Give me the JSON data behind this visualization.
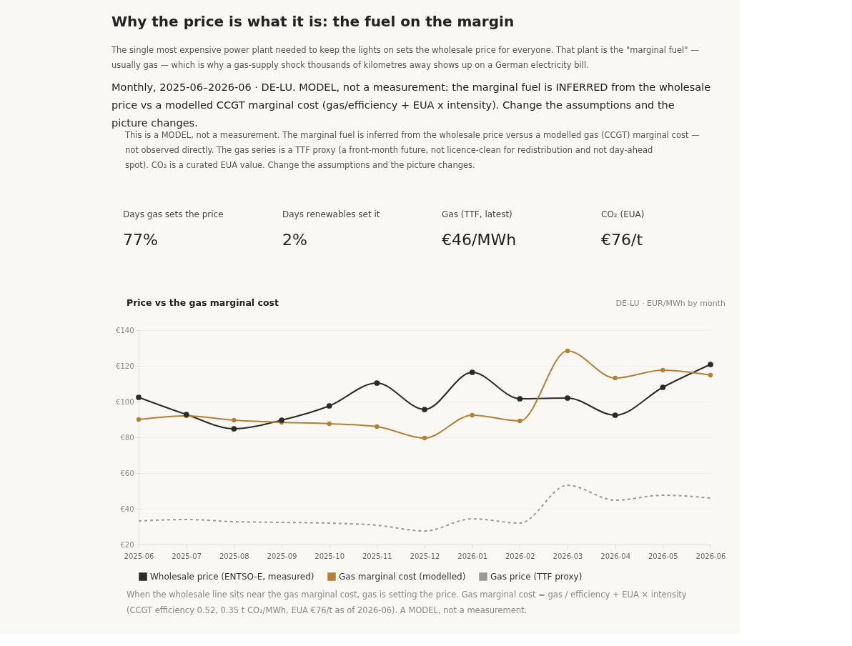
{
  "chart_data": {
    "type": "line",
    "title": "Why the price is what it is: the fuel on the margin",
    "subtitle": "The single most expensive power plant needed to keep the lights on sets the wholesale price for everyone. That plant is the \"marginal fuel\" — usually gas — which is why a gas-supply shock thousands of kilometres away shows up on a German electricity bill.",
    "annotations": [
      "Monthly, 2025-06–2026-06 · DE-LU. MODEL, not a measurement: the marginal fuel is INFERRED from the wholesale price vs a modelled CCGT marginal cost (gas/efficiency + EUA x intensity). Change the assumptions and the picture changes.",
      "This is a MODEL, not a measurement. The marginal fuel is inferred from the wholesale price versus a modelled gas (CCGT) marginal cost — not observed directly. The gas series is a TTF proxy (a front-month future, not licence-clean for redistribution and not day-ahead spot). CO₂ is a curated EUA value. Change the assumptions and the picture changes.",
      "Days gas sets the price",
      "77%",
      "Days renewables set it",
      "2%",
      "Gas (TTF, latest)",
      "€46/MWh",
      "CO₂ (EUA)",
      "€76/t",
      "Price vs the gas marginal cost",
      "DE-LU · EUR/MWh by month",
      "When the wholesale line sits near the gas marginal cost, gas is setting the price. Gas marginal cost = gas / efficiency + EUA × intensity (CCGT efficiency 0.52, 0.35 t CO₂/MWh, EUA €76/t as of 2026-06). A MODEL, not a measurement."
    ],
    "categories": [
      "2025-06",
      "2025-07",
      "2025-08",
      "2025-09",
      "2025-10",
      "2025-11",
      "2025-12",
      "2026-01",
      "2026-02",
      "2026-03",
      "2026-04",
      "2026-05",
      "2026-06"
    ],
    "series": [
      {
        "name": "Wholesale price (ENTSO-E, measured)",
        "color": "#2b2b2b",
        "marker": "circle",
        "line_style": "solid",
        "values": [
          102.4,
          92.8,
          84.8,
          89.6,
          97.6,
          110.4,
          95.6,
          116.4,
          101.6,
          102,
          92.4,
          108,
          120.8
        ]
      },
      {
        "name": "Gas marginal cost (modelled)",
        "color": "#b5802f",
        "marker": "circle",
        "line_style": "solid",
        "values": [
          90,
          92,
          89.6,
          88.4,
          87.6,
          86,
          79.6,
          92.4,
          89.2,
          128.4,
          113.2,
          117.6,
          114.8
        ]
      },
      {
        "name": "Gas price (TTF proxy)",
        "color": "#999999",
        "marker": "none",
        "line_style": "dashed",
        "values": [
          33.2,
          34,
          32.8,
          32.4,
          32,
          30.8,
          27.6,
          34.4,
          32,
          53.2,
          44.8,
          47.6,
          46
        ]
      }
    ],
    "ylim": [
      20,
      140
    ],
    "yticks": [
      {
        "value": 20,
        "label": "€20"
      },
      {
        "value": 40,
        "label": "€40"
      },
      {
        "value": 60,
        "label": "€60"
      },
      {
        "value": 80,
        "label": "€80"
      },
      {
        "value": 100,
        "label": "€100"
      },
      {
        "value": 120,
        "label": "€120"
      },
      {
        "value": 140,
        "label": "€140"
      }
    ],
    "grid": "y",
    "legend": "bottom left"
  }
}
